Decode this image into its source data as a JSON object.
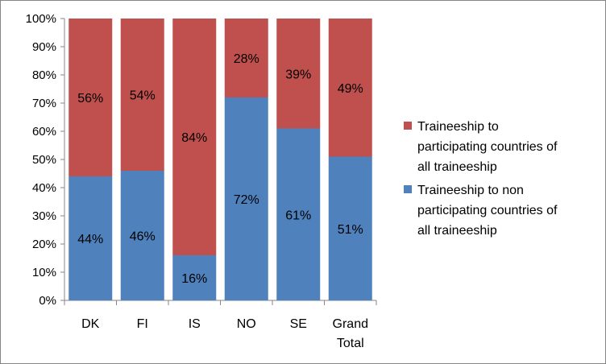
{
  "chart_data": {
    "type": "bar",
    "stacked": true,
    "categories": [
      "DK",
      "FI",
      "IS",
      "NO",
      "SE",
      "Grand Total"
    ],
    "series": [
      {
        "name": "Traineeship to non participating countries of all traineeship",
        "values": [
          44,
          46,
          16,
          72,
          61,
          51
        ],
        "labels": [
          "44%",
          "46%",
          "16%",
          "72%",
          "61%",
          "51%"
        ],
        "color": "#4F81BD"
      },
      {
        "name": "Traineeship to participating countries of all traineeship",
        "values": [
          56,
          54,
          84,
          28,
          39,
          49
        ],
        "labels": [
          "56%",
          "54%",
          "84%",
          "28%",
          "39%",
          "49%"
        ],
        "color": "#C0504D"
      }
    ],
    "yticks": [
      "0%",
      "10%",
      "20%",
      "30%",
      "40%",
      "50%",
      "60%",
      "70%",
      "80%",
      "90%",
      "100%"
    ],
    "ylim": [
      0,
      100
    ],
    "grid": false,
    "legend_position": "right",
    "legend": [
      {
        "series": 1,
        "lines": [
          "Traineeship to",
          "participating countries of",
          "all traineeship"
        ]
      },
      {
        "series": 0,
        "lines": [
          "Traineeship to non",
          "participating countries of",
          "all traineeship"
        ]
      }
    ]
  }
}
